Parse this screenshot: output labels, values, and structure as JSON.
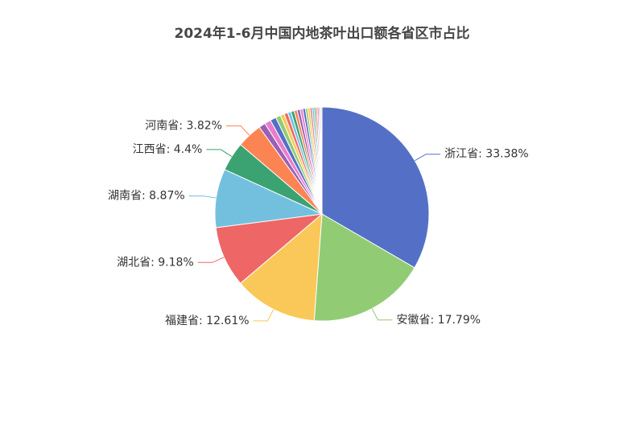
{
  "chart_data": {
    "type": "pie",
    "title": "2024年1-6月中国内地茶叶出口额各省区市占比",
    "values": [
      33.38,
      17.79,
      12.61,
      9.18,
      8.87,
      4.4,
      3.82,
      1.0,
      0.95,
      0.9,
      0.75,
      0.6,
      0.55,
      0.5,
      0.5,
      0.45,
      0.45,
      0.4,
      0.4,
      0.35,
      0.35,
      0.3,
      0.3,
      0.25,
      0.25,
      0.2,
      0.2,
      0.15,
      0.15
    ],
    "value_labels": [
      "浙江省: 33.38%",
      "安徽省: 17.79%",
      "福建省: 12.61%",
      "湖北省: 9.18%",
      "湖南省: 8.87%",
      "江西省: 4.4%",
      "河南省: 3.82%",
      null,
      null,
      null,
      null,
      null,
      null,
      null,
      null,
      null,
      null,
      null,
      null,
      null,
      null,
      null,
      null,
      null,
      null,
      null,
      null,
      null,
      null
    ],
    "colors": [
      "#5470c6",
      "#91cc75",
      "#fac858",
      "#ee6666",
      "#73c0de",
      "#3ba272",
      "#fc8452",
      "#9a60b4",
      "#ea7ccc"
    ]
  }
}
